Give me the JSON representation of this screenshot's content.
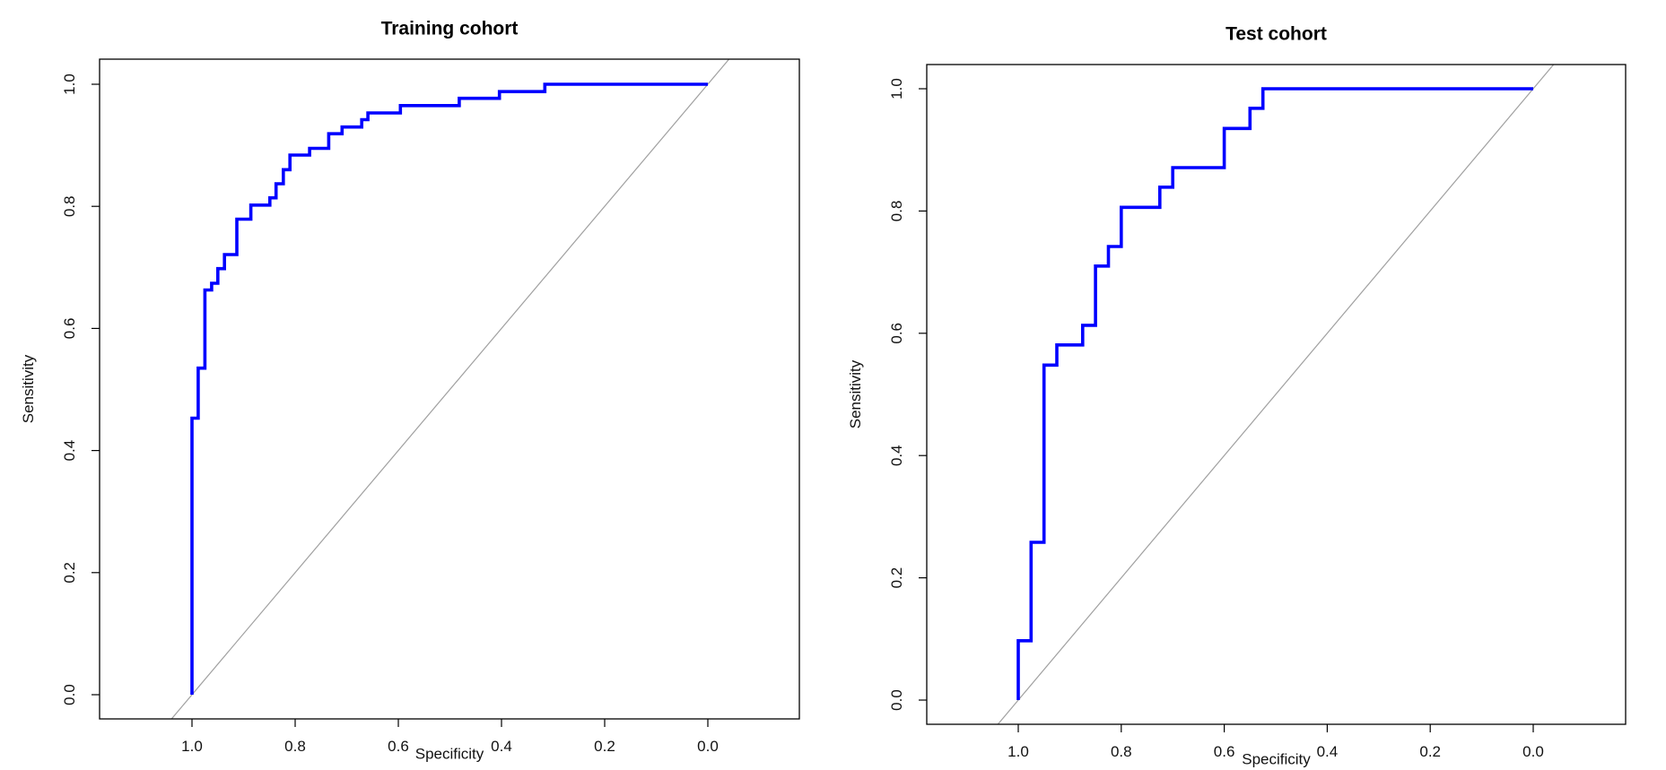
{
  "chart_data": [
    {
      "type": "line",
      "title": "Training cohort",
      "xlabel": "Specificity",
      "ylabel": "Sensitivity",
      "xlim": [
        1.18,
        -0.18
      ],
      "ylim": [
        -0.04,
        1.04
      ],
      "xticks": [
        "1.0",
        "0.8",
        "0.6",
        "0.4",
        "0.2",
        "0.0"
      ],
      "yticks": [
        "0.0",
        "0.2",
        "0.4",
        "0.6",
        "0.8",
        "1.0"
      ],
      "grid": false,
      "colors": {
        "curve": "#0000FF",
        "diagonal": "#A0A0A0"
      },
      "series": [
        {
          "name": "ROC",
          "points": [
            [
              1.0,
              0.0
            ],
            [
              1.0,
              0.453
            ],
            [
              0.988,
              0.453
            ],
            [
              0.988,
              0.535
            ],
            [
              0.975,
              0.535
            ],
            [
              0.975,
              0.663
            ],
            [
              0.962,
              0.663
            ],
            [
              0.962,
              0.674
            ],
            [
              0.95,
              0.674
            ],
            [
              0.95,
              0.698
            ],
            [
              0.937,
              0.698
            ],
            [
              0.937,
              0.721
            ],
            [
              0.913,
              0.721
            ],
            [
              0.913,
              0.779
            ],
            [
              0.886,
              0.779
            ],
            [
              0.886,
              0.802
            ],
            [
              0.849,
              0.802
            ],
            [
              0.849,
              0.814
            ],
            [
              0.837,
              0.814
            ],
            [
              0.837,
              0.837
            ],
            [
              0.823,
              0.837
            ],
            [
              0.823,
              0.86
            ],
            [
              0.81,
              0.86
            ],
            [
              0.81,
              0.884
            ],
            [
              0.772,
              0.884
            ],
            [
              0.772,
              0.895
            ],
            [
              0.735,
              0.895
            ],
            [
              0.735,
              0.919
            ],
            [
              0.709,
              0.919
            ],
            [
              0.709,
              0.93
            ],
            [
              0.671,
              0.93
            ],
            [
              0.671,
              0.942
            ],
            [
              0.659,
              0.942
            ],
            [
              0.659,
              0.953
            ],
            [
              0.596,
              0.953
            ],
            [
              0.596,
              0.965
            ],
            [
              0.482,
              0.965
            ],
            [
              0.482,
              0.977
            ],
            [
              0.404,
              0.977
            ],
            [
              0.404,
              0.988
            ],
            [
              0.316,
              0.988
            ],
            [
              0.316,
              1.0
            ],
            [
              0.0,
              1.0
            ]
          ]
        }
      ]
    },
    {
      "type": "line",
      "title": "Test cohort",
      "xlabel": "Specificity",
      "ylabel": "Sensitivity",
      "xlim": [
        1.18,
        -0.18
      ],
      "ylim": [
        -0.04,
        1.04
      ],
      "xticks": [
        "1.0",
        "0.8",
        "0.6",
        "0.4",
        "0.2",
        "0.0"
      ],
      "yticks": [
        "0.0",
        "0.2",
        "0.4",
        "0.6",
        "0.8",
        "1.0"
      ],
      "grid": false,
      "colors": {
        "curve": "#0000FF",
        "diagonal": "#A0A0A0"
      },
      "series": [
        {
          "name": "ROC",
          "points": [
            [
              1.0,
              0.0
            ],
            [
              1.0,
              0.097
            ],
            [
              0.975,
              0.097
            ],
            [
              0.975,
              0.258
            ],
            [
              0.95,
              0.258
            ],
            [
              0.95,
              0.548
            ],
            [
              0.925,
              0.548
            ],
            [
              0.925,
              0.581
            ],
            [
              0.875,
              0.581
            ],
            [
              0.875,
              0.613
            ],
            [
              0.85,
              0.613
            ],
            [
              0.85,
              0.71
            ],
            [
              0.825,
              0.71
            ],
            [
              0.825,
              0.742
            ],
            [
              0.8,
              0.742
            ],
            [
              0.8,
              0.806
            ],
            [
              0.725,
              0.806
            ],
            [
              0.725,
              0.839
            ],
            [
              0.7,
              0.839
            ],
            [
              0.7,
              0.871
            ],
            [
              0.6,
              0.871
            ],
            [
              0.6,
              0.935
            ],
            [
              0.55,
              0.935
            ],
            [
              0.55,
              0.968
            ],
            [
              0.525,
              0.968
            ],
            [
              0.525,
              1.0
            ],
            [
              0.0,
              1.0
            ]
          ]
        }
      ]
    }
  ]
}
